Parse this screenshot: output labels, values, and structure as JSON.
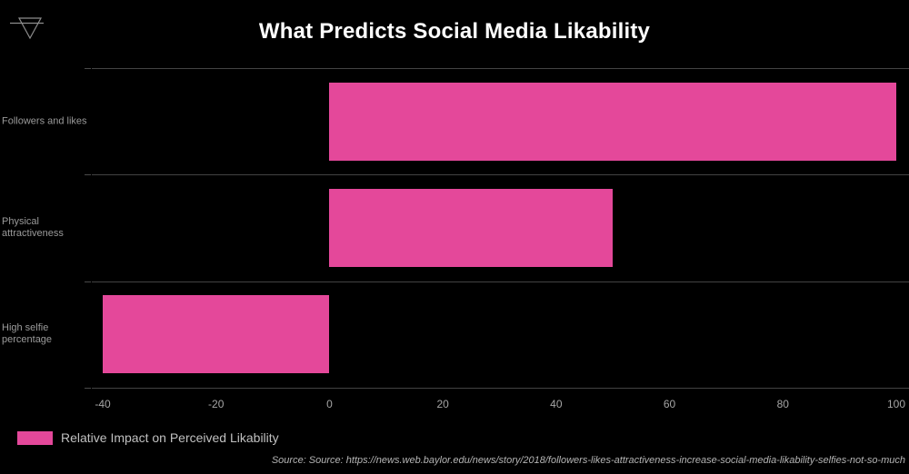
{
  "brand": {
    "icon": "funnel-triangle-icon"
  },
  "chart_data": {
    "type": "bar",
    "orientation": "horizontal",
    "title": "What Predicts Social Media Likability",
    "categories": [
      "Followers and likes",
      "Physical attractiveness",
      "High selfie percentage"
    ],
    "series": [
      {
        "name": "Relative Impact on Perceived Likability",
        "values": [
          100,
          50,
          -40
        ],
        "color": "#E4489A"
      }
    ],
    "xlim": [
      -40,
      100
    ],
    "xticks": [
      -40,
      -20,
      0,
      20,
      40,
      60,
      80,
      100
    ],
    "grid": "horizontal category separators only",
    "legend_position": "bottom-left",
    "source": "Source: Source: https://news.web.baylor.edu/news/story/2018/followers-likes-attractiveness-increase-social-media-likability-selfies-not-so-much"
  },
  "colors": {
    "background": "#000000",
    "bar": "#E4489A",
    "title_text": "#FFFFFF",
    "axis_text": "#A6A6A6",
    "category_text": "#9A9A9A",
    "legend_text": "#C0C0C0",
    "source_text": "#B5B5B5",
    "gridline": "#434343",
    "icon_stroke": "#8C8C8C"
  }
}
